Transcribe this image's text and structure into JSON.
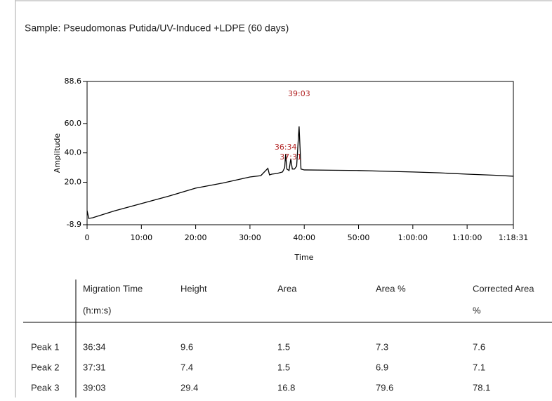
{
  "header": {
    "title": "Sample: Pseudomonas Putida/UV-Induced +LDPE (60 days)"
  },
  "chart_data": {
    "type": "line",
    "x_label": "Time",
    "y_label": "Amplitude",
    "x": [
      0,
      0.3,
      1,
      5,
      10,
      15,
      20,
      25,
      30,
      32,
      33.3,
      33.6,
      34,
      35,
      36,
      36.4,
      36.57,
      36.8,
      37.2,
      37.52,
      37.8,
      38.2,
      38.6,
      39.05,
      39.4,
      40,
      45,
      50,
      55,
      60,
      65,
      70,
      75,
      78.52
    ],
    "series": [
      {
        "color": "#000000",
        "values": [
          0.7,
          -4.6,
          -4.2,
          0.5,
          5.5,
          10.5,
          16,
          19.5,
          23.6,
          24.5,
          29.5,
          25,
          25.5,
          26,
          27,
          30,
          39,
          29,
          28,
          36,
          29,
          29,
          31,
          58,
          29,
          28.4,
          28.2,
          28,
          27.5,
          27,
          26.4,
          25.5,
          24.8,
          24.1
        ]
      }
    ],
    "xlim": [
      0,
      78.52
    ],
    "xticks": [
      0,
      {
        "value": 10,
        "label": "10:00"
      },
      {
        "value": 20,
        "label": "20:00"
      },
      {
        "value": 30,
        "label": "30:00"
      },
      {
        "value": 40,
        "label": "40:00"
      },
      {
        "value": 50,
        "label": "50:00"
      },
      {
        "value": 60,
        "label": "1:00:00"
      },
      {
        "value": 70,
        "label": "1:10:00"
      },
      {
        "value": 78.52,
        "label": "1:18:31"
      }
    ],
    "ylim": [
      -8.9,
      88.6
    ],
    "yticks": [
      -8.9,
      {
        "value": 20,
        "label": "20.0"
      },
      {
        "value": 40,
        "label": "40.0"
      },
      {
        "value": 60,
        "label": "60.0"
      },
      88.6
    ],
    "annotations": [
      {
        "text": "36:34",
        "x": 36.57,
        "color": "#b22222"
      },
      {
        "text": "37:31",
        "x": 37.52,
        "color": "#b22222"
      },
      {
        "text": "39:03",
        "x": 39.05,
        "color": "#b22222"
      }
    ]
  },
  "table": {
    "columns": [
      [
        "Migration Time",
        "(h:m:s)"
      ],
      [
        "Height"
      ],
      [
        "Area"
      ],
      [
        "Area %"
      ],
      [
        "Corrected Area",
        "%"
      ]
    ],
    "rows": [
      [
        "Peak 1",
        "36:34",
        "9.6",
        "1.5",
        "7.3",
        "7.6"
      ],
      [
        "Peak 2",
        "37:31",
        "7.4",
        "1.5",
        "6.9",
        "7.1"
      ],
      [
        "Peak 3",
        "39:03",
        "29.4",
        "16.8",
        "79.6",
        "78.1"
      ]
    ]
  }
}
